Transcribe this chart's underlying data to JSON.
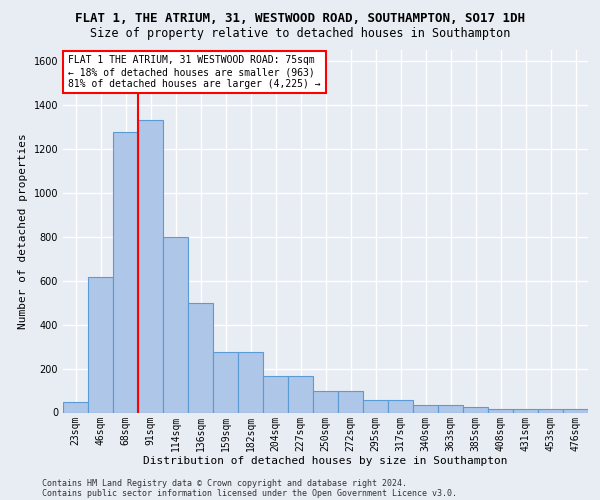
{
  "title": "FLAT 1, THE ATRIUM, 31, WESTWOOD ROAD, SOUTHAMPTON, SO17 1DH",
  "subtitle": "Size of property relative to detached houses in Southampton",
  "xlabel": "Distribution of detached houses by size in Southampton",
  "ylabel": "Number of detached properties",
  "categories": [
    "23sqm",
    "46sqm",
    "68sqm",
    "91sqm",
    "114sqm",
    "136sqm",
    "159sqm",
    "182sqm",
    "204sqm",
    "227sqm",
    "250sqm",
    "272sqm",
    "295sqm",
    "317sqm",
    "340sqm",
    "363sqm",
    "385sqm",
    "408sqm",
    "431sqm",
    "453sqm",
    "476sqm"
  ],
  "values": [
    50,
    615,
    1275,
    1330,
    800,
    500,
    275,
    275,
    165,
    165,
    98,
    98,
    58,
    58,
    35,
    35,
    25,
    18,
    18,
    18,
    18
  ],
  "bar_color": "#aec6e8",
  "bar_edge_color": "#5b9bd5",
  "annotation_text_line1": "FLAT 1 THE ATRIUM, 31 WESTWOOD ROAD: 75sqm",
  "annotation_text_line2": "← 18% of detached houses are smaller (963)",
  "annotation_text_line3": "81% of detached houses are larger (4,225) →",
  "ylim": [
    0,
    1650
  ],
  "yticks": [
    0,
    200,
    400,
    600,
    800,
    1000,
    1200,
    1400,
    1600
  ],
  "footer1": "Contains HM Land Registry data © Crown copyright and database right 2024.",
  "footer2": "Contains public sector information licensed under the Open Government Licence v3.0.",
  "background_color": "#e8edf4",
  "plot_bg_color": "#e8edf4",
  "grid_color": "#ffffff",
  "red_line_bar_index": 2,
  "title_fontsize": 9,
  "subtitle_fontsize": 8.5,
  "tick_fontsize": 7,
  "ylabel_fontsize": 8,
  "xlabel_fontsize": 8
}
